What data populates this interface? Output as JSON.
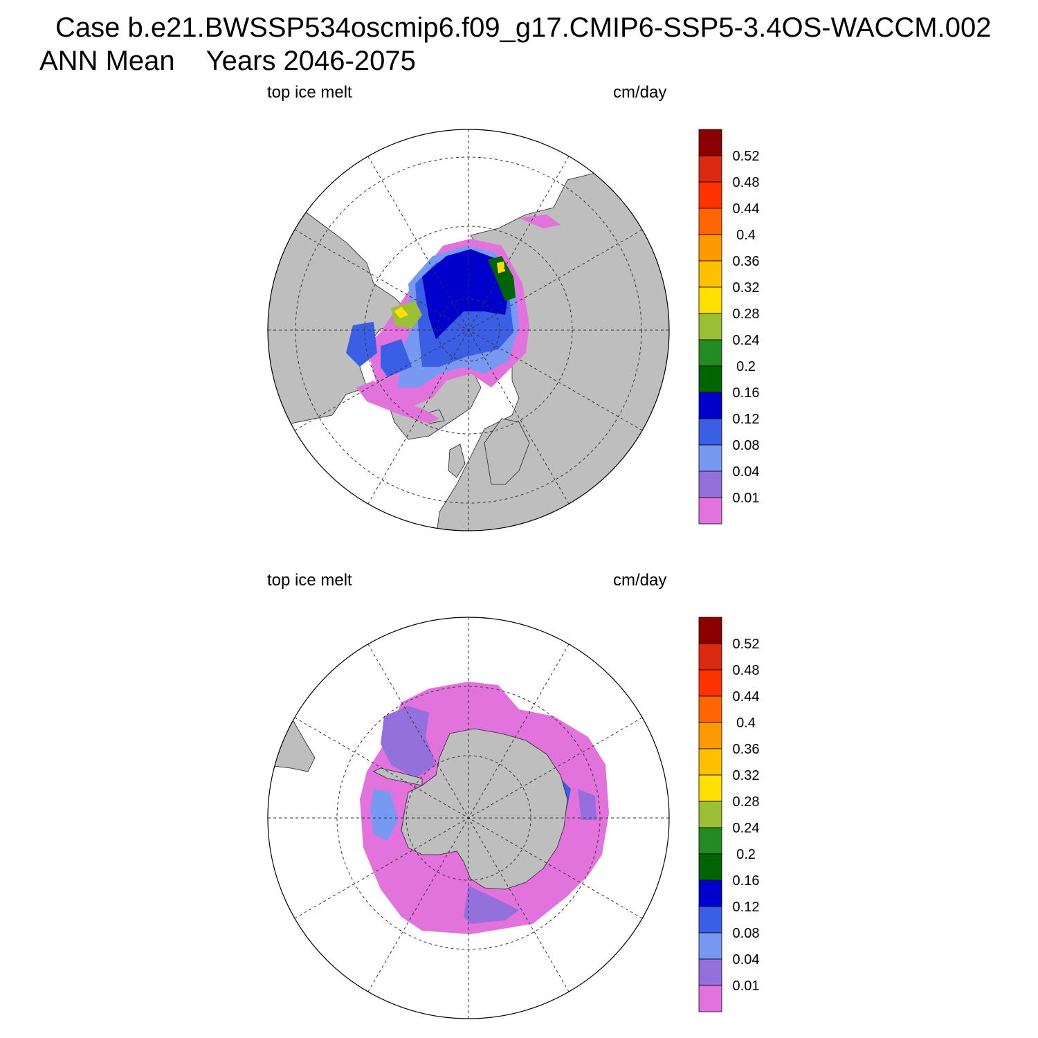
{
  "header": {
    "case_line": "Case b.e21.BWSSP534oscmip6.f09_g17.CMIP6-SSP5-3.4OS-WACCM.002",
    "season": "ANN Mean",
    "years": "Years 2046-2075"
  },
  "panels": [
    {
      "id": "nh",
      "variable": "top ice melt",
      "units": "cm/day"
    },
    {
      "id": "sh",
      "variable": "top ice melt",
      "units": "cm/day"
    }
  ],
  "colorbar": {
    "labels": [
      "0.52",
      "0.48",
      "0.44",
      "0.4",
      "0.36",
      "0.32",
      "0.28",
      "0.24",
      "0.2",
      "0.16",
      "0.12",
      "0.08",
      "0.04",
      "0.01"
    ],
    "colors": [
      "#8b0000",
      "#dc2a12",
      "#ff3300",
      "#ff6600",
      "#ff9900",
      "#ffc000",
      "#ffe000",
      "#9bbf35",
      "#228b22",
      "#006400",
      "#0000cd",
      "#3a5fe5",
      "#7799f2",
      "#9370db",
      "#e272dc"
    ]
  },
  "map_colors": {
    "land": "#bebebe",
    "ocean": "#ffffff"
  }
}
